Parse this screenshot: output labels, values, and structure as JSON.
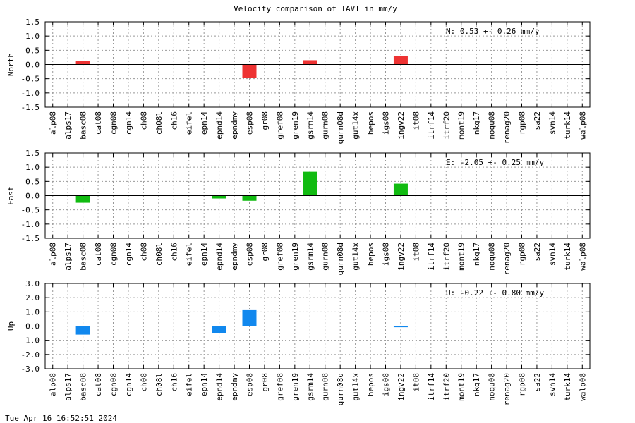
{
  "title": "Velocity comparison of TAVI in mm/y",
  "footer": "Tue Apr 16 16:52:51 2024",
  "stations": [
    "alp08",
    "alps17",
    "basc08",
    "cat08",
    "cgn08",
    "cgn14",
    "ch08",
    "ch08l",
    "ch16",
    "eifel",
    "epn14",
    "epnd14",
    "epndmy",
    "esp08",
    "gr08",
    "gref08",
    "gren19",
    "gsrm14",
    "gurn08",
    "gurn08d",
    "gut14x",
    "hepos",
    "igs08",
    "ingv22",
    "it08",
    "itrf14",
    "itrf20",
    "mont19",
    "nkg17",
    "noqu08",
    "renag20",
    "rgp08",
    "sa22",
    "svn14",
    "turk14",
    "walp08"
  ],
  "chart_data": [
    {
      "type": "bar",
      "ylabel": "North",
      "ylim": [
        -1.5,
        1.5
      ],
      "yticks": [
        -1.5,
        -1.0,
        -0.5,
        0.0,
        0.5,
        1.0,
        1.5
      ],
      "ytick_labels": [
        "-1.5",
        "-1.0",
        "-0.5",
        "0.0",
        "0.5",
        "1.0",
        "1.5"
      ],
      "color": "#ee3333",
      "annotation": "N:   0.53 +-  0.26 mm/y",
      "values": [
        0,
        0,
        0.12,
        0,
        0,
        0,
        0,
        0,
        0,
        0,
        0,
        0,
        0,
        -0.47,
        0,
        0,
        0,
        0.15,
        0,
        0,
        0,
        0,
        0,
        0.3,
        0,
        0,
        0,
        0,
        0,
        0,
        0,
        0,
        0,
        0,
        0,
        0
      ]
    },
    {
      "type": "bar",
      "ylabel": "East",
      "ylim": [
        -1.5,
        1.5
      ],
      "yticks": [
        -1.5,
        -1.0,
        -0.5,
        0.0,
        0.5,
        1.0,
        1.5
      ],
      "ytick_labels": [
        "-1.5",
        "-1.0",
        "-0.5",
        "0.0",
        "0.5",
        "1.0",
        "1.5"
      ],
      "color": "#11bb11",
      "annotation": "E:  -2.05 +-  0.25 mm/y",
      "values": [
        0,
        0,
        -0.25,
        0,
        0,
        0,
        0,
        0,
        0,
        0,
        0,
        -0.1,
        0,
        -0.18,
        0,
        0,
        0,
        0.84,
        0,
        0,
        0,
        0,
        0,
        0.42,
        0,
        0,
        0,
        0,
        0,
        0,
        0,
        0,
        0,
        0,
        0,
        0
      ]
    },
    {
      "type": "bar",
      "ylabel": "Up",
      "ylim": [
        -3.0,
        3.0
      ],
      "yticks": [
        -3.0,
        -2.0,
        -1.0,
        0.0,
        1.0,
        2.0,
        3.0
      ],
      "ytick_labels": [
        "-3.0",
        "-2.0",
        "-1.0",
        "0.0",
        "1.0",
        "2.0",
        "3.0"
      ],
      "color": "#1188ee",
      "annotation": "U:  -0.22 +-  0.80 mm/y",
      "values": [
        0,
        0,
        -0.6,
        0,
        0,
        0,
        0,
        0,
        0,
        0,
        0,
        -0.5,
        0,
        1.12,
        0,
        0,
        0,
        0,
        0,
        0,
        0,
        0,
        0,
        -0.08,
        0,
        0,
        0,
        0,
        0,
        0,
        0,
        0,
        0,
        0,
        0,
        0
      ]
    }
  ]
}
